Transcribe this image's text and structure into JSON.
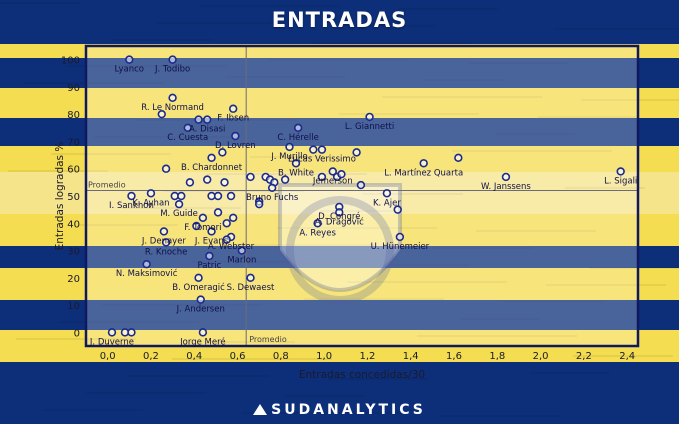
{
  "title": "ENTRADAS",
  "brand": "SUDANALYTICS",
  "colors": {
    "blue": "#0d2f7a",
    "yellow": "#f4dd50",
    "point": "#1b2a8f",
    "frame": "#10185f"
  },
  "chart_data": {
    "type": "scatter",
    "title": "ENTRADAS",
    "xlabel": "Entradas concedidas/30",
    "ylabel": "Entradas logradas %",
    "xlim": [
      -0.1,
      2.45
    ],
    "ylim": [
      -5,
      105
    ],
    "xticks": [
      "0,0",
      "0,2",
      "0,4",
      "0,6",
      "0,8",
      "1,0",
      "1,2",
      "1,4",
      "1,6",
      "1,8",
      "2,0",
      "2,2",
      "2,4"
    ],
    "xtick_values": [
      0,
      0.2,
      0.4,
      0.6,
      0.8,
      1.0,
      1.2,
      1.4,
      1.6,
      1.8,
      2.0,
      2.2,
      2.4
    ],
    "yticks": [
      "0",
      "10",
      "20",
      "30",
      "40",
      "50",
      "60",
      "70",
      "80",
      "90",
      "100"
    ],
    "ytick_values": [
      0,
      10,
      20,
      30,
      40,
      50,
      60,
      70,
      80,
      90,
      100
    ],
    "grid": false,
    "reference_lines": {
      "x_mean": 0.64,
      "y_mean": 52,
      "x_label": "Promedio",
      "y_label": "Promedio"
    },
    "points": [
      {
        "x": 0.1,
        "y": 100,
        "label": "Lyanco"
      },
      {
        "x": 0.3,
        "y": 100,
        "label": "J. Todibo"
      },
      {
        "x": 0.3,
        "y": 86,
        "label": "R. Le Normand"
      },
      {
        "x": 0.58,
        "y": 82,
        "label": "F. Ibsen"
      },
      {
        "x": 0.37,
        "y": 75,
        "label": "C. Cuesta"
      },
      {
        "x": 0.46,
        "y": 78,
        "label": "A. Disasi"
      },
      {
        "x": 0.42,
        "y": 78
      },
      {
        "x": 0.25,
        "y": 80
      },
      {
        "x": 0.88,
        "y": 75,
        "label": "C. Hérelle"
      },
      {
        "x": 1.21,
        "y": 79,
        "label": "L. Giannetti"
      },
      {
        "x": 0.59,
        "y": 72,
        "label": "D. Lovren"
      },
      {
        "x": 0.84,
        "y": 68,
        "label": "J. Murillo"
      },
      {
        "x": 0.95,
        "y": 67
      },
      {
        "x": 0.99,
        "y": 67,
        "label": "Lucas Verissimo"
      },
      {
        "x": 1.15,
        "y": 66
      },
      {
        "x": 0.53,
        "y": 66
      },
      {
        "x": 0.48,
        "y": 64,
        "label": "B. Chardonnet"
      },
      {
        "x": 0.27,
        "y": 60
      },
      {
        "x": 1.62,
        "y": 64
      },
      {
        "x": 1.46,
        "y": 62,
        "label": "L. Martínez Quarta"
      },
      {
        "x": 2.37,
        "y": 59,
        "label": "L. Sigali"
      },
      {
        "x": 1.84,
        "y": 57,
        "label": "W. Janssens"
      },
      {
        "x": 0.87,
        "y": 62,
        "label": "B. White"
      },
      {
        "x": 1.04,
        "y": 59,
        "label": "Jemerson"
      },
      {
        "x": 1.06,
        "y": 57
      },
      {
        "x": 0.99,
        "y": 57
      },
      {
        "x": 1.08,
        "y": 58
      },
      {
        "x": 0.73,
        "y": 57
      },
      {
        "x": 0.75,
        "y": 56
      },
      {
        "x": 0.77,
        "y": 55
      },
      {
        "x": 0.82,
        "y": 56
      },
      {
        "x": 0.76,
        "y": 53,
        "label": "Bruno Fuchs"
      },
      {
        "x": 0.66,
        "y": 57
      },
      {
        "x": 0.46,
        "y": 56
      },
      {
        "x": 0.2,
        "y": 51,
        "label": "K. Ayhan"
      },
      {
        "x": 0.38,
        "y": 55
      },
      {
        "x": 0.54,
        "y": 55
      },
      {
        "x": 0.31,
        "y": 50
      },
      {
        "x": 0.34,
        "y": 50
      },
      {
        "x": 0.48,
        "y": 50
      },
      {
        "x": 0.51,
        "y": 50
      },
      {
        "x": 0.57,
        "y": 50
      },
      {
        "x": 0.11,
        "y": 50,
        "label": "I. Sankhon"
      },
      {
        "x": 0.33,
        "y": 47,
        "label": "M. Guide"
      },
      {
        "x": 0.7,
        "y": 48
      },
      {
        "x": 0.7,
        "y": 47
      },
      {
        "x": 1.17,
        "y": 54
      },
      {
        "x": 1.29,
        "y": 51,
        "label": "K. Ajer"
      },
      {
        "x": 1.07,
        "y": 46,
        "label": "D. Congré"
      },
      {
        "x": 1.34,
        "y": 45
      },
      {
        "x": 1.07,
        "y": 44,
        "label": "A. Dragović"
      },
      {
        "x": 0.97,
        "y": 40,
        "label": "A. Reyes"
      },
      {
        "x": 1.35,
        "y": 35,
        "label": "U. Hünemeier"
      },
      {
        "x": 0.26,
        "y": 37,
        "label": "J. Denayer"
      },
      {
        "x": 0.41,
        "y": 39
      },
      {
        "x": 0.44,
        "y": 42,
        "label": "F. Tomori"
      },
      {
        "x": 0.51,
        "y": 44
      },
      {
        "x": 0.58,
        "y": 42
      },
      {
        "x": 0.55,
        "y": 40
      },
      {
        "x": 0.48,
        "y": 37,
        "label": "J. Evans"
      },
      {
        "x": 0.57,
        "y": 35,
        "label": "A. Webster"
      },
      {
        "x": 0.55,
        "y": 34
      },
      {
        "x": 0.27,
        "y": 33,
        "label": "R. Knoche"
      },
      {
        "x": 0.62,
        "y": 30,
        "label": "Marlon"
      },
      {
        "x": 0.47,
        "y": 28,
        "label": "Patric"
      },
      {
        "x": 0.18,
        "y": 25,
        "label": "N. Maksimović"
      },
      {
        "x": 0.42,
        "y": 20,
        "label": "B. Omeragić"
      },
      {
        "x": 0.66,
        "y": 20,
        "label": "S. Dewaest"
      },
      {
        "x": 0.43,
        "y": 12,
        "label": "J. Andersen"
      },
      {
        "x": 0.02,
        "y": 0,
        "label": "J. Duverne"
      },
      {
        "x": 0.08,
        "y": 0
      },
      {
        "x": 0.11,
        "y": 0
      },
      {
        "x": 0.44,
        "y": 0,
        "label": "Jorge Meré"
      }
    ]
  }
}
